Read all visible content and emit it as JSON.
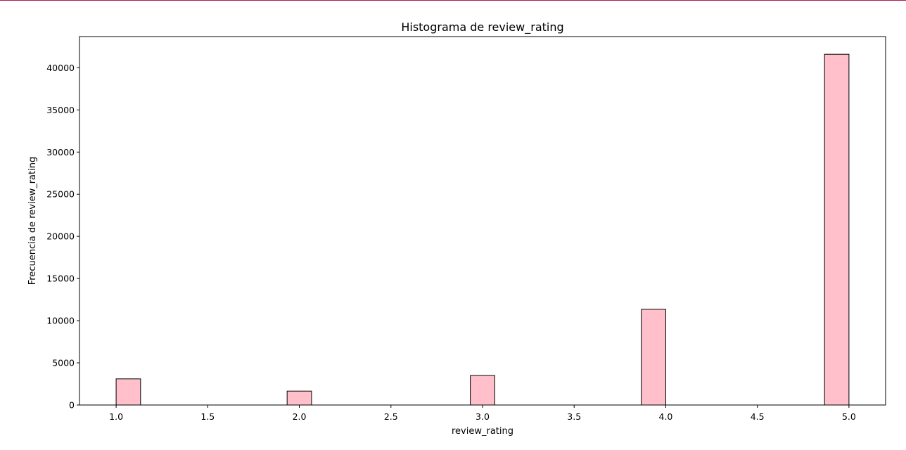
{
  "colors": {
    "top_border": "#b0195a",
    "bar_fill": "#ffc0cb",
    "bar_edge": "#000000"
  },
  "chart_data": {
    "type": "bar",
    "title": "Histograma de review_rating",
    "xlabel": "review_rating",
    "ylabel": "Frecuencia de review_rating",
    "grid": false,
    "legend": "none",
    "bin_width": 0.1333,
    "bins": [
      {
        "x_start": 1.0,
        "x_end": 1.1333,
        "count": 3100
      },
      {
        "x_start": 1.9333,
        "x_end": 2.0667,
        "count": 1650
      },
      {
        "x_start": 2.9333,
        "x_end": 3.0667,
        "count": 3500
      },
      {
        "x_start": 3.8667,
        "x_end": 4.0,
        "count": 11350
      },
      {
        "x_start": 4.8667,
        "x_end": 5.0,
        "count": 41600
      }
    ],
    "xlim": [
      0.8,
      5.2
    ],
    "ylim": [
      0,
      43700
    ],
    "x_ticks": [
      "1.0",
      "1.5",
      "2.0",
      "2.5",
      "3.0",
      "3.5",
      "4.0",
      "4.5",
      "5.0"
    ],
    "y_ticks": [
      "0",
      "5000",
      "10000",
      "15000",
      "20000",
      "25000",
      "30000",
      "35000",
      "40000"
    ]
  }
}
